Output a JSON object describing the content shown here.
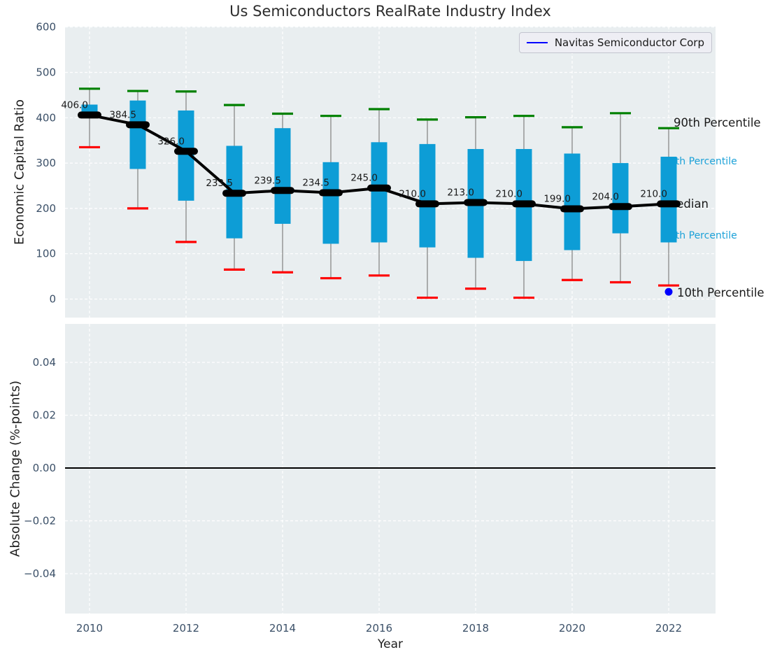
{
  "figure": {
    "title": "Us Semiconductors RealRate Industry Index"
  },
  "legend": {
    "label": "Navitas Semiconductor Corp",
    "line_color": "#0000ff"
  },
  "colors": {
    "plot_bg": "#e9eef0",
    "grid": "#ffffff",
    "tick": "#3b5068",
    "text": "#1a1a1a",
    "box": "#0d9dd6",
    "p90_cap": "#008000",
    "p10_cap": "#ff0000",
    "whisker": "#888888",
    "median": "#000000",
    "navitas": "#0000ff",
    "annotation_blue": "#1ba1d8"
  },
  "chart_data": {
    "type": "boxplot",
    "title": "Us Semiconductors RealRate Industry Index",
    "xlabel": "Year",
    "xticks": [
      2010,
      2012,
      2014,
      2016,
      2018,
      2020,
      2022
    ],
    "xtick_labels": [
      "2010",
      "2012",
      "2014",
      "2016",
      "2018",
      "2020",
      "2022"
    ],
    "xlim": [
      2009.49,
      2022.97
    ],
    "grid": "white-dashed",
    "legend_position": "upper right",
    "top": {
      "ylabel": "Economic Capital Ratio",
      "yticks": [
        0,
        100,
        200,
        300,
        400,
        500,
        600
      ],
      "ytick_labels": [
        "0",
        "100",
        "200",
        "300",
        "400",
        "500",
        "600"
      ],
      "ylim": [
        -41,
        601
      ],
      "years": [
        2010,
        2011,
        2012,
        2013,
        2014,
        2015,
        2016,
        2017,
        2018,
        2019,
        2020,
        2021,
        2022
      ],
      "p90": [
        464,
        459,
        458,
        428,
        409,
        404,
        419,
        396,
        401,
        404,
        379,
        410,
        377
      ],
      "p75": [
        429,
        438,
        416,
        338,
        377,
        302,
        346,
        342,
        331,
        331,
        321,
        300,
        314
      ],
      "median": [
        406.0,
        384.5,
        326.0,
        233.5,
        239.5,
        234.5,
        245.0,
        210.0,
        213.0,
        210.0,
        199.0,
        204.0,
        210.0
      ],
      "p25": [
        400,
        287,
        217,
        134,
        166,
        122,
        125,
        114,
        91,
        84,
        108,
        145,
        125
      ],
      "p10": [
        335,
        200,
        126,
        65,
        59,
        46,
        52,
        3,
        23,
        3,
        42,
        37,
        30
      ],
      "median_labels": [
        "406.0",
        "384.5",
        "326.0",
        "233.5",
        "239.5",
        "234.5",
        "245.0",
        "210.0",
        "213.0",
        "210.0",
        "199.0",
        "204.0",
        "210.0"
      ],
      "annotations": {
        "p90": "90th Percentile",
        "p75": "75th Percentile",
        "median": "Median",
        "p25": "25th Percentile",
        "p10": "10th Percentile"
      },
      "series": [
        {
          "name": "Navitas Semiconductor Corp",
          "points": [
            {
              "year": 2022,
              "value": 16
            }
          ]
        }
      ]
    },
    "bottom": {
      "ylabel": "Absolute Change (%-points)",
      "yticks": [
        0.04,
        0.02,
        0.0,
        -0.02,
        -0.04
      ],
      "ytick_labels": [
        "0.04",
        "0.02",
        "0.00",
        "−0.02",
        "−0.04"
      ],
      "ylim": [
        -0.0551,
        0.0551
      ],
      "zero_line": 0.0,
      "series": []
    }
  }
}
